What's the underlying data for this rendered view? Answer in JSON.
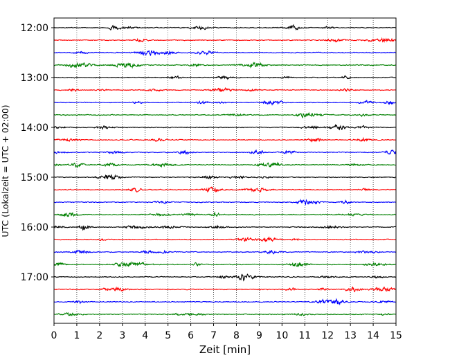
{
  "chart_data": {
    "type": "line",
    "xlabel": "Zeit  [min]",
    "ylabel": "UTC (Lokalzeit = UTC + 02:00)",
    "xlim": [
      0,
      15
    ],
    "x_ticks": [
      "0",
      "1",
      "2",
      "3",
      "4",
      "5",
      "6",
      "7",
      "8",
      "9",
      "10",
      "11",
      "12",
      "13",
      "14",
      "15"
    ],
    "y_ticks": [
      "12:00",
      "13:00",
      "14:00",
      "15:00",
      "16:00",
      "17:00"
    ],
    "grid": "vertical dotted",
    "trace_interval_min": 15,
    "trace_colors": [
      "#000000",
      "#ff0000",
      "#0000ff",
      "#008000"
    ],
    "traces_utc_start": [
      "12:00",
      "12:15",
      "12:30",
      "12:45",
      "13:00",
      "13:15",
      "13:30",
      "13:45",
      "14:00",
      "14:15",
      "14:30",
      "14:45",
      "15:00",
      "15:15",
      "15:30",
      "15:45",
      "16:00",
      "16:15",
      "16:30",
      "16:45",
      "17:00",
      "17:15",
      "17:30",
      "17:45"
    ]
  }
}
